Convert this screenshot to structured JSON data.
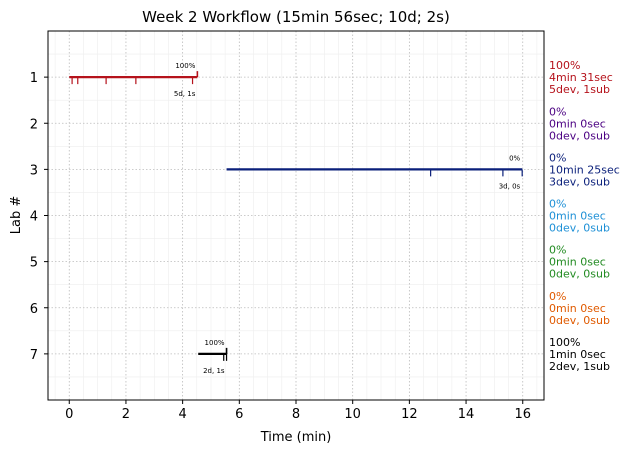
{
  "chart_data": {
    "type": "timeline",
    "title": "Week 2 Workflow (15min 56sec; 10d; 2s)",
    "xlabel": "Time (min)",
    "ylabel": "Lab #",
    "xlim": [
      -0.75,
      16.75
    ],
    "ylim": [
      0,
      8
    ],
    "x_ticks": [
      0,
      2,
      4,
      6,
      8,
      10,
      12,
      14,
      16
    ],
    "y_ticks": [
      1,
      2,
      3,
      4,
      5,
      6,
      7
    ],
    "grid": true,
    "labs": [
      {
        "lab": 1,
        "color": "#b5121b",
        "start": 0.0,
        "end": 4.52,
        "top_label": "100%",
        "bottom_label": "5d, 1s",
        "ticks_down": [
          0.1,
          0.3,
          1.3,
          2.35,
          4.35
        ],
        "ticks_up": [
          4.52
        ],
        "side": [
          "100%",
          "4min 31sec",
          "5dev, 1sub"
        ]
      },
      {
        "lab": 2,
        "color": "#4b0082",
        "start": null,
        "end": null,
        "top_label": "",
        "bottom_label": "",
        "ticks_down": [],
        "ticks_up": [],
        "side": [
          "0%",
          "0min 0sec",
          "0dev, 0sub"
        ]
      },
      {
        "lab": 3,
        "color": "#0a1f7a",
        "start": 5.55,
        "end": 15.98,
        "top_label": "0%",
        "bottom_label": "3d, 0s",
        "ticks_down": [
          12.75,
          15.3,
          15.98
        ],
        "ticks_up": [],
        "side": [
          "0%",
          "10min 25sec",
          "3dev, 0sub"
        ]
      },
      {
        "lab": 4,
        "color": "#1e90d6",
        "start": null,
        "end": null,
        "top_label": "",
        "bottom_label": "",
        "ticks_down": [],
        "ticks_up": [],
        "side": [
          "0%",
          "0min 0sec",
          "0dev, 0sub"
        ]
      },
      {
        "lab": 5,
        "color": "#228b22",
        "start": null,
        "end": null,
        "top_label": "",
        "bottom_label": "",
        "ticks_down": [],
        "ticks_up": [],
        "side": [
          "0%",
          "0min 0sec",
          "0dev, 0sub"
        ]
      },
      {
        "lab": 6,
        "color": "#e05a00",
        "start": null,
        "end": null,
        "top_label": "",
        "bottom_label": "",
        "ticks_down": [],
        "ticks_up": [],
        "side": [
          "0%",
          "0min 0sec",
          "0dev, 0sub"
        ]
      },
      {
        "lab": 7,
        "color": "#000000",
        "start": 4.55,
        "end": 5.55,
        "top_label": "100%",
        "bottom_label": "2d, 1s",
        "ticks_down": [
          5.45,
          5.55
        ],
        "ticks_up": [
          5.55
        ],
        "side": [
          "100%",
          "1min 0sec",
          "2dev, 1sub"
        ]
      }
    ]
  }
}
